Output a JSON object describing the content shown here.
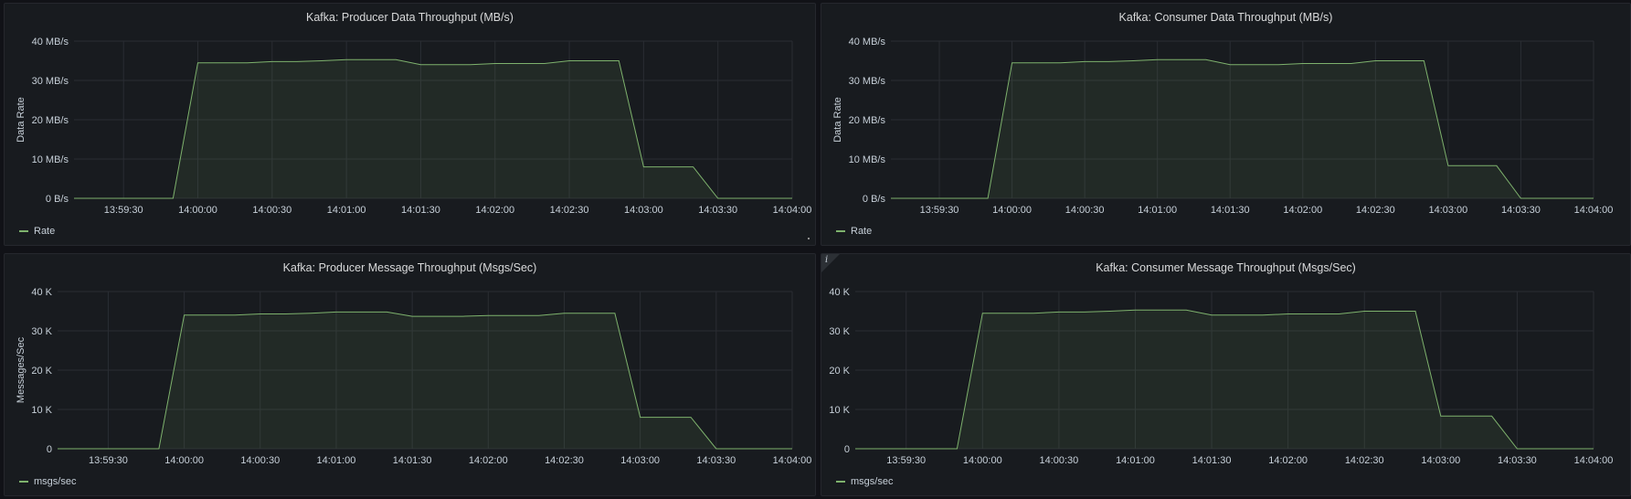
{
  "colors": {
    "series": "#7eb26d",
    "fill": "rgba(126,178,109,0.10)",
    "grid": "#2a2d33",
    "text": "#c7d0d9"
  },
  "panels": [
    {
      "title": "Kafka: Producer Data Throughput (MB/s)",
      "legend": "Rate",
      "info_icon": ""
    },
    {
      "title": "Kafka: Consumer Data Throughput (MB/s)",
      "legend": "Rate",
      "info_icon": ""
    },
    {
      "title": "Kafka: Producer Message Throughput (Msgs/Sec)",
      "legend": "msgs/sec",
      "info_icon": ""
    },
    {
      "title": "Kafka: Consumer Message Throughput (Msgs/Sec)",
      "legend": "msgs/sec",
      "info_icon": "i"
    }
  ],
  "chart_data": [
    {
      "type": "area",
      "title": "Kafka: Producer Data Throughput (MB/s)",
      "ylabel": "Data Rate",
      "ylim": [
        0,
        40
      ],
      "yticks": [
        0,
        10,
        20,
        30,
        40
      ],
      "ytick_labels": [
        "0 B/s",
        "10 MB/s",
        "20 MB/s",
        "30 MB/s",
        "40 MB/s"
      ],
      "xlim": [
        "13:59:10",
        "14:04:00"
      ],
      "xticks": [
        "13:59:30",
        "14:00:00",
        "14:00:30",
        "14:01:00",
        "14:01:30",
        "14:02:00",
        "14:02:30",
        "14:03:00",
        "14:03:30",
        "14:04:00"
      ],
      "grid": true,
      "legend_position": "bottom-left",
      "series": [
        {
          "name": "Rate",
          "x": [
            "13:59:10",
            "13:59:20",
            "13:59:30",
            "13:59:40",
            "13:59:50",
            "14:00:00",
            "14:00:10",
            "14:00:20",
            "14:00:30",
            "14:00:40",
            "14:00:50",
            "14:01:00",
            "14:01:10",
            "14:01:20",
            "14:01:30",
            "14:01:40",
            "14:01:50",
            "14:02:00",
            "14:02:10",
            "14:02:20",
            "14:02:30",
            "14:02:40",
            "14:02:50",
            "14:03:00",
            "14:03:10",
            "14:03:20",
            "14:03:30",
            "14:03:40",
            "14:03:50",
            "14:04:00"
          ],
          "values": [
            0,
            0,
            0,
            0,
            0,
            34.5,
            34.5,
            34.5,
            34.8,
            34.8,
            35,
            35.3,
            35.3,
            35.3,
            34,
            34,
            34,
            34.3,
            34.3,
            34.3,
            35,
            35,
            35,
            8,
            8,
            8,
            0,
            0,
            0,
            0
          ]
        }
      ]
    },
    {
      "type": "area",
      "title": "Kafka: Consumer Data Throughput (MB/s)",
      "ylabel": "Data Rate",
      "ylim": [
        0,
        40
      ],
      "yticks": [
        0,
        10,
        20,
        30,
        40
      ],
      "ytick_labels": [
        "0 B/s",
        "10 MB/s",
        "20 MB/s",
        "30 MB/s",
        "40 MB/s"
      ],
      "xlim": [
        "13:59:10",
        "14:04:00"
      ],
      "xticks": [
        "13:59:30",
        "14:00:00",
        "14:00:30",
        "14:01:00",
        "14:01:30",
        "14:02:00",
        "14:02:30",
        "14:03:00",
        "14:03:30",
        "14:04:00"
      ],
      "grid": true,
      "legend_position": "bottom-left",
      "series": [
        {
          "name": "Rate",
          "x": [
            "13:59:10",
            "13:59:20",
            "13:59:30",
            "13:59:40",
            "13:59:50",
            "14:00:00",
            "14:00:10",
            "14:00:20",
            "14:00:30",
            "14:00:40",
            "14:00:50",
            "14:01:00",
            "14:01:10",
            "14:01:20",
            "14:01:30",
            "14:01:40",
            "14:01:50",
            "14:02:00",
            "14:02:10",
            "14:02:20",
            "14:02:30",
            "14:02:40",
            "14:02:50",
            "14:03:00",
            "14:03:10",
            "14:03:20",
            "14:03:30",
            "14:03:40",
            "14:03:50",
            "14:04:00"
          ],
          "values": [
            0,
            0,
            0,
            0,
            0,
            34.5,
            34.5,
            34.5,
            34.8,
            34.8,
            35,
            35.3,
            35.3,
            35.3,
            34,
            34,
            34,
            34.3,
            34.3,
            34.3,
            35,
            35,
            35,
            8.3,
            8.3,
            8.3,
            0,
            0,
            0,
            0
          ]
        }
      ]
    },
    {
      "type": "area",
      "title": "Kafka: Producer Message Throughput (Msgs/Sec)",
      "ylabel": "Messages/Sec",
      "ylim": [
        0,
        40000
      ],
      "yticks": [
        0,
        10000,
        20000,
        30000,
        40000
      ],
      "ytick_labels": [
        "0",
        "10 K",
        "20 K",
        "30 K",
        "40 K"
      ],
      "xlim": [
        "13:59:10",
        "14:04:00"
      ],
      "xticks": [
        "13:59:30",
        "14:00:00",
        "14:00:30",
        "14:01:00",
        "14:01:30",
        "14:02:00",
        "14:02:30",
        "14:03:00",
        "14:03:30",
        "14:04:00"
      ],
      "grid": true,
      "legend_position": "bottom-left",
      "series": [
        {
          "name": "msgs/sec",
          "x": [
            "13:59:10",
            "13:59:20",
            "13:59:30",
            "13:59:40",
            "13:59:50",
            "14:00:00",
            "14:00:10",
            "14:00:20",
            "14:00:30",
            "14:00:40",
            "14:00:50",
            "14:01:00",
            "14:01:10",
            "14:01:20",
            "14:01:30",
            "14:01:40",
            "14:01:50",
            "14:02:00",
            "14:02:10",
            "14:02:20",
            "14:02:30",
            "14:02:40",
            "14:02:50",
            "14:03:00",
            "14:03:10",
            "14:03:20",
            "14:03:30",
            "14:03:40",
            "14:03:50",
            "14:04:00"
          ],
          "values": [
            0,
            0,
            0,
            0,
            0,
            34000,
            34000,
            34000,
            34300,
            34300,
            34500,
            34800,
            34800,
            34800,
            33700,
            33700,
            33700,
            33900,
            33900,
            33900,
            34500,
            34500,
            34500,
            8000,
            8000,
            8000,
            0,
            0,
            0,
            0
          ]
        }
      ]
    },
    {
      "type": "area",
      "title": "Kafka: Consumer Message Throughput (Msgs/Sec)",
      "ylabel": "",
      "ylim": [
        0,
        40000
      ],
      "yticks": [
        0,
        10000,
        20000,
        30000,
        40000
      ],
      "ytick_labels": [
        "0",
        "10 K",
        "20 K",
        "30 K",
        "40 K"
      ],
      "xlim": [
        "13:59:10",
        "14:04:00"
      ],
      "xticks": [
        "13:59:30",
        "14:00:00",
        "14:00:30",
        "14:01:00",
        "14:01:30",
        "14:02:00",
        "14:02:30",
        "14:03:00",
        "14:03:30",
        "14:04:00"
      ],
      "grid": true,
      "legend_position": "bottom-left",
      "series": [
        {
          "name": "msgs/sec",
          "x": [
            "13:59:10",
            "13:59:20",
            "13:59:30",
            "13:59:40",
            "13:59:50",
            "14:00:00",
            "14:00:10",
            "14:00:20",
            "14:00:30",
            "14:00:40",
            "14:00:50",
            "14:01:00",
            "14:01:10",
            "14:01:20",
            "14:01:30",
            "14:01:40",
            "14:01:50",
            "14:02:00",
            "14:02:10",
            "14:02:20",
            "14:02:30",
            "14:02:40",
            "14:02:50",
            "14:03:00",
            "14:03:10",
            "14:03:20",
            "14:03:30",
            "14:03:40",
            "14:03:50",
            "14:04:00"
          ],
          "values": [
            0,
            0,
            0,
            0,
            0,
            34500,
            34500,
            34500,
            34800,
            34800,
            35000,
            35300,
            35300,
            35300,
            34000,
            34000,
            34000,
            34300,
            34300,
            34300,
            35000,
            35000,
            35000,
            8300,
            8300,
            8300,
            0,
            0,
            0,
            0
          ]
        }
      ]
    }
  ]
}
